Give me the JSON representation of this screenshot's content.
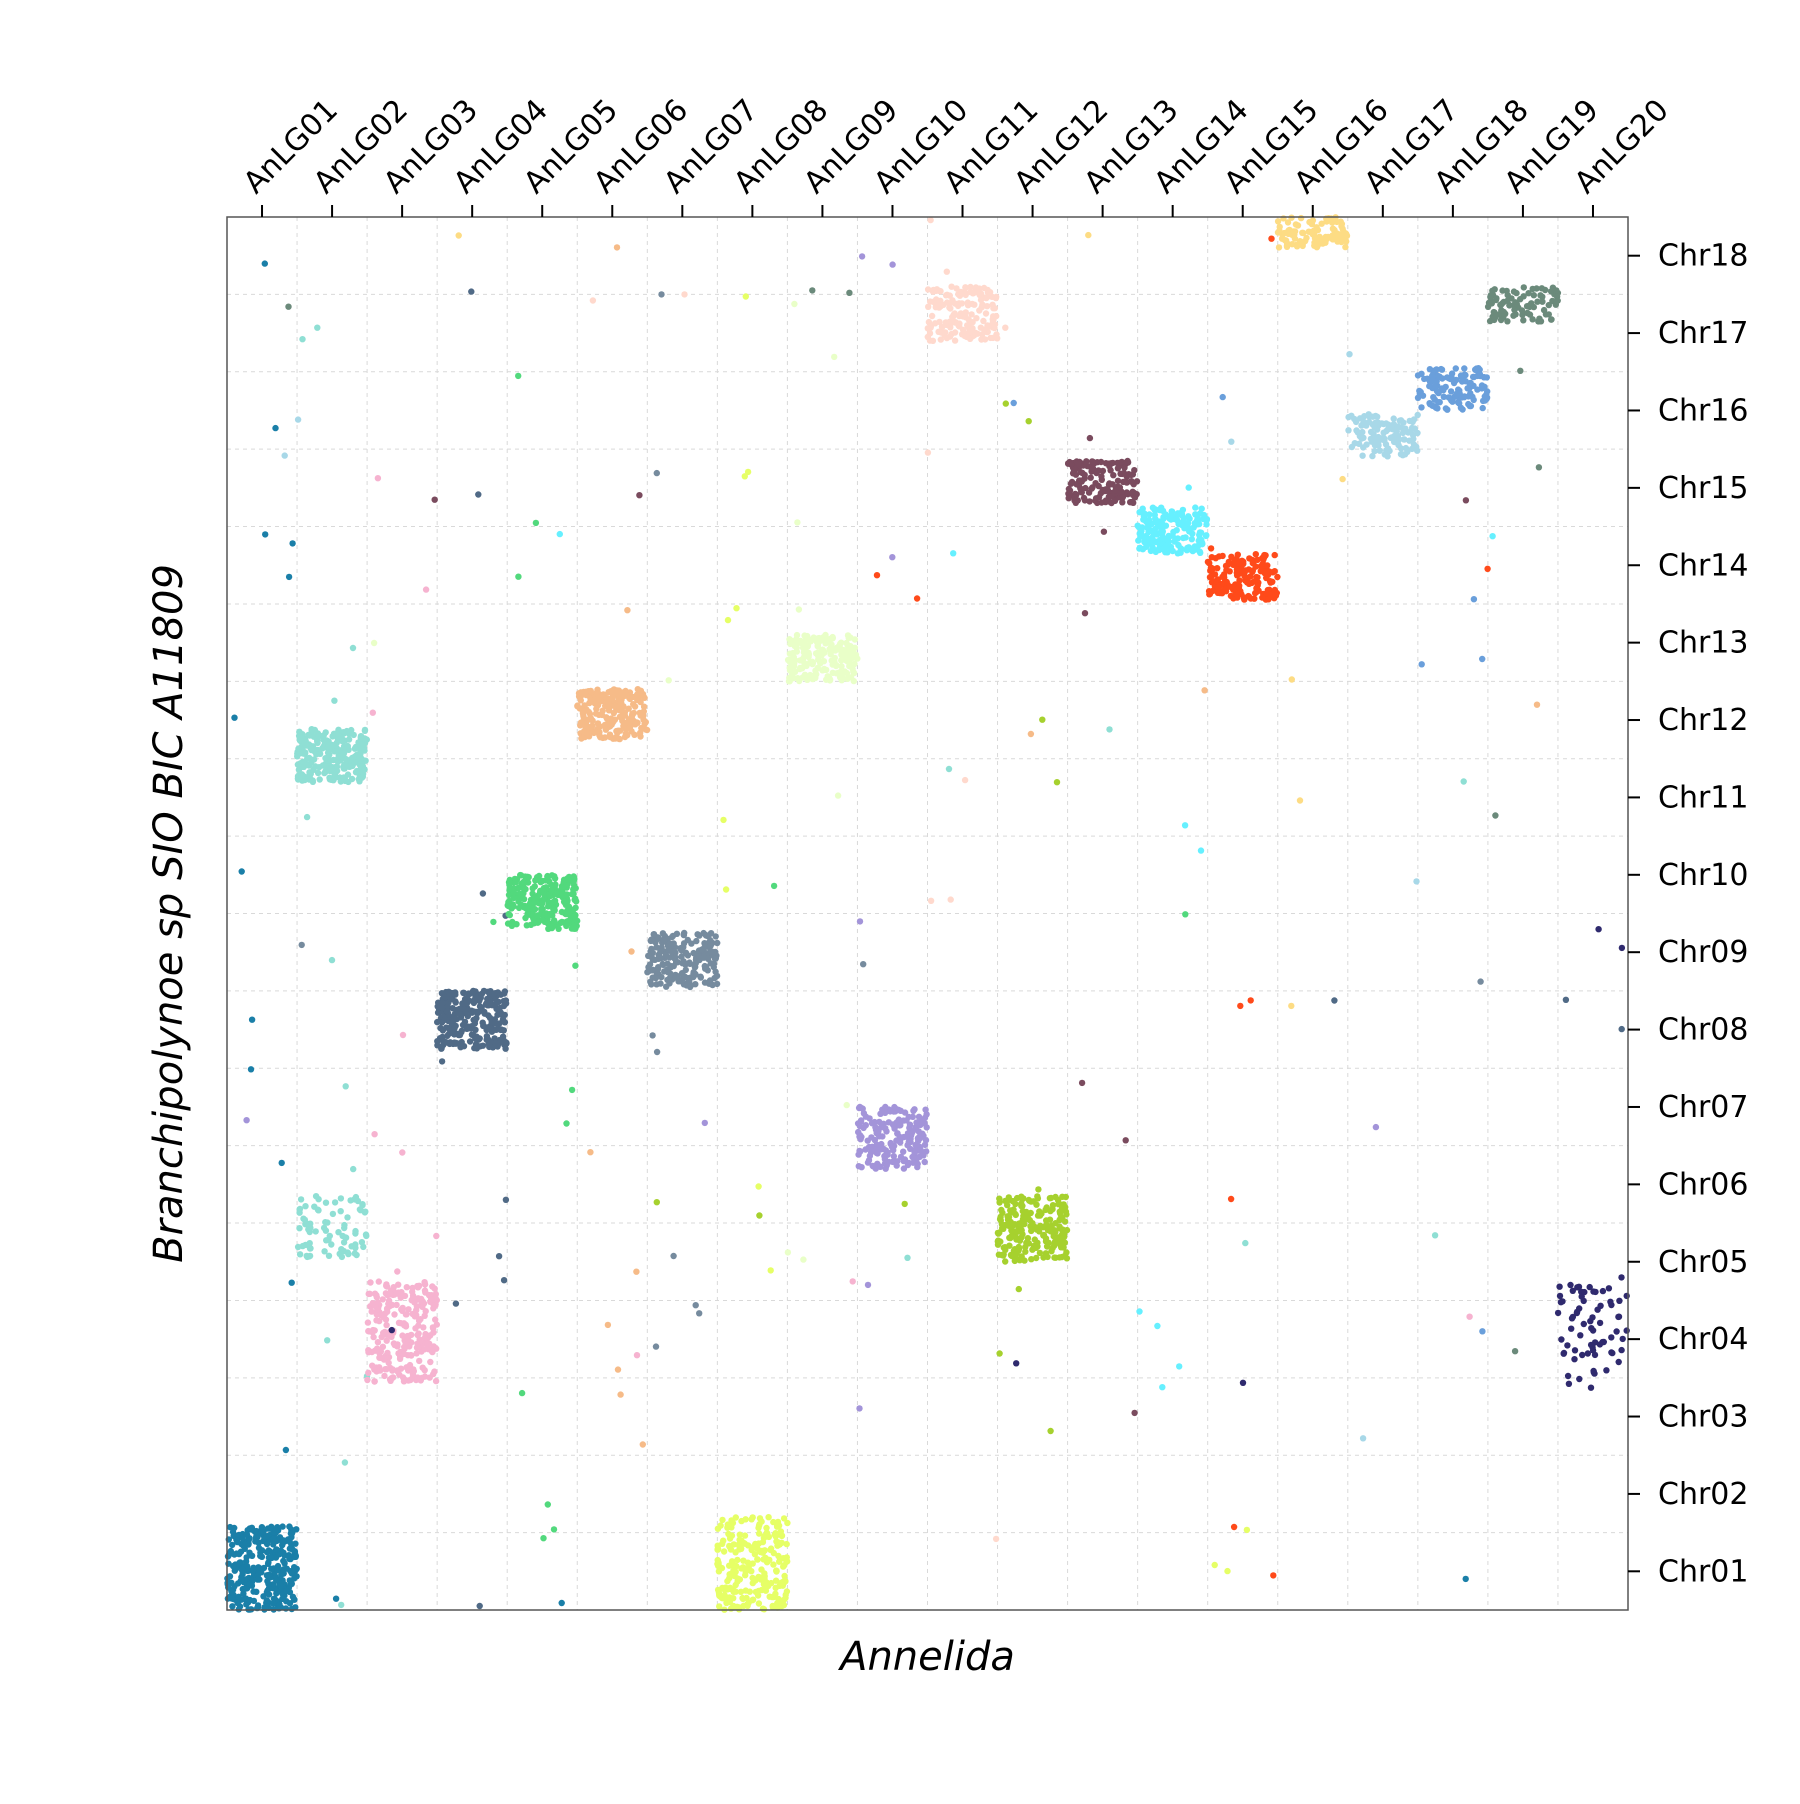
{
  "chart_data": {
    "type": "scatter",
    "title": "",
    "xlabel": "Annelida",
    "ylabel": "Branchipolynoe sp SIO BIC A11809",
    "x_categories": [
      "AnLG01",
      "AnLG02",
      "AnLG03",
      "AnLG04",
      "AnLG05",
      "AnLG06",
      "AnLG07",
      "AnLG08",
      "AnLG09",
      "AnLG10",
      "AnLG11",
      "AnLG12",
      "AnLG13",
      "AnLG14",
      "AnLG15",
      "AnLG16",
      "AnLG17",
      "AnLG18",
      "AnLG19",
      "AnLG20"
    ],
    "y_categories": [
      "Chr01",
      "Chr02",
      "Chr03",
      "Chr04",
      "Chr05",
      "Chr06",
      "Chr07",
      "Chr08",
      "Chr09",
      "Chr10",
      "Chr11",
      "Chr12",
      "Chr13",
      "Chr14",
      "Chr15",
      "Chr16",
      "Chr17",
      "Chr18"
    ],
    "x_extent": [
      0,
      20
    ],
    "y_extent": [
      0,
      18
    ],
    "grid": true,
    "blocks": [
      {
        "x": "AnLG01",
        "y": "Chr01",
        "color": "#1a7fa8",
        "x_range": [
          0.0,
          1.0
        ],
        "y_range": [
          0.0,
          1.08
        ],
        "count": 320
      },
      {
        "x": "AnLG02",
        "y": "Chr08",
        "color": "#8fdfd4",
        "x_range": [
          1.0,
          2.0
        ],
        "y_range": [
          10.7,
          11.4
        ],
        "count": 250
      },
      {
        "x": "AnLG02",
        "y": "Chr03",
        "color": "#8fdfd4",
        "x_range": [
          1.0,
          2.0
        ],
        "y_range": [
          4.55,
          5.35
        ],
        "count": 80
      },
      {
        "x": "AnLG03",
        "y": "Chr02",
        "color": "#f6b3d0",
        "x_range": [
          2.0,
          3.0
        ],
        "y_range": [
          2.95,
          4.25
        ],
        "count": 260
      },
      {
        "x": "AnLG04",
        "y": "Chr05",
        "color": "#506a86",
        "x_range": [
          3.0,
          4.0
        ],
        "y_range": [
          7.25,
          8.0
        ],
        "count": 250
      },
      {
        "x": "AnLG05",
        "y": "Chr07",
        "color": "#52d97d",
        "x_range": [
          4.0,
          5.0
        ],
        "y_range": [
          8.8,
          9.5
        ],
        "count": 240
      },
      {
        "x": "AnLG06",
        "y": "Chr09",
        "color": "#f6bb88",
        "x_range": [
          5.0,
          6.0
        ],
        "y_range": [
          11.25,
          11.9
        ],
        "count": 220
      },
      {
        "x": "AnLG07",
        "y": "Chr06",
        "color": "#768b9e",
        "x_range": [
          6.0,
          7.0
        ],
        "y_range": [
          8.05,
          8.75
        ],
        "count": 200
      },
      {
        "x": "AnLG08",
        "y": "Chr01",
        "color": "#e6ff66",
        "x_range": [
          7.0,
          8.0
        ],
        "y_range": [
          0.0,
          1.2
        ],
        "count": 240
      },
      {
        "x": "AnLG09",
        "y": "Chr10",
        "color": "#e9ffc8",
        "x_range": [
          8.0,
          9.0
        ],
        "y_range": [
          12.0,
          12.6
        ],
        "count": 200
      },
      {
        "x": "AnLG10",
        "y": "Chr04",
        "color": "#a394d9",
        "x_range": [
          9.0,
          10.0
        ],
        "y_range": [
          5.7,
          6.5
        ],
        "count": 180
      },
      {
        "x": "AnLG11",
        "y": "Chr16",
        "color": "#ffd9cd",
        "x_range": [
          10.0,
          11.0
        ],
        "y_range": [
          16.4,
          17.1
        ],
        "count": 170
      },
      {
        "x": "AnLG12",
        "y": "Chr03",
        "color": "#a6d12e",
        "x_range": [
          11.0,
          12.0
        ],
        "y_range": [
          4.5,
          5.35
        ],
        "count": 210
      },
      {
        "x": "AnLG13",
        "y": "Chr13",
        "color": "#7a4b5e",
        "x_range": [
          12.0,
          13.0
        ],
        "y_range": [
          14.3,
          14.85
        ],
        "count": 160
      },
      {
        "x": "AnLG14",
        "y": "Chr12",
        "color": "#66f0ff",
        "x_range": [
          13.0,
          14.0
        ],
        "y_range": [
          13.65,
          14.25
        ],
        "count": 180
      },
      {
        "x": "AnLG15",
        "y": "Chr11",
        "color": "#ff4a1a",
        "x_range": [
          14.0,
          15.0
        ],
        "y_range": [
          13.05,
          13.65
        ],
        "count": 170
      },
      {
        "x": "AnLG16",
        "y": "Chr18",
        "color": "#fddc84",
        "x_range": [
          15.0,
          16.0
        ],
        "y_range": [
          17.6,
          18.0
        ],
        "count": 100
      },
      {
        "x": "AnLG17",
        "y": "Chr14",
        "color": "#a8d8e8",
        "x_range": [
          16.0,
          17.0
        ],
        "y_range": [
          14.9,
          15.45
        ],
        "count": 120
      },
      {
        "x": "AnLG18",
        "y": "Chr15",
        "color": "#6a9fdb",
        "x_range": [
          17.0,
          18.0
        ],
        "y_range": [
          15.5,
          16.05
        ],
        "count": 120
      },
      {
        "x": "AnLG19",
        "y": "Chr17",
        "color": "#6b8a7b",
        "x_range": [
          18.0,
          19.0
        ],
        "y_range": [
          16.65,
          17.1
        ],
        "count": 90
      },
      {
        "x": "AnLG20",
        "y": "Chr02",
        "color": "#2f2a6e",
        "x_range": [
          19.0,
          20.0
        ],
        "y_range": [
          2.85,
          4.2
        ],
        "count": 70
      }
    ]
  }
}
